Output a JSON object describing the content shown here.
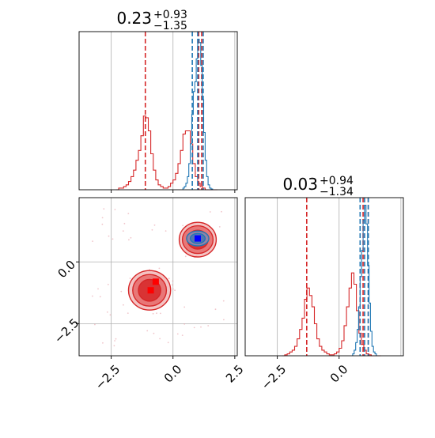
{
  "chart_data": [
    {
      "panel": "top-left",
      "type": "histogram",
      "title": {
        "base": "0.23",
        "sup": "+0.93",
        "sub": "−1.35"
      },
      "xlim": [
        -3.8,
        2.6
      ],
      "series": [
        {
          "name": "",
          "color": "#d62728",
          "bin_edges": [
            -2.3,
            -2.2,
            -2.1,
            -2.0,
            -1.9,
            -1.8,
            -1.7,
            -1.6,
            -1.5,
            -1.4,
            -1.3,
            -1.2,
            -1.1,
            -1.0,
            -0.9,
            -0.8,
            -0.7,
            -0.6,
            -0.5,
            -0.4,
            -0.3,
            -0.2,
            -0.1,
            0.0,
            0.1,
            0.2,
            0.3,
            0.4,
            0.5,
            0.6,
            0.7,
            0.8,
            0.9,
            1.0,
            1.1,
            1.2,
            1.3,
            1.4,
            1.5,
            1.6,
            1.7,
            1.8
          ],
          "heights": [
            0,
            0.01,
            0.01,
            0.02,
            0.03,
            0.05,
            0.08,
            0.12,
            0.18,
            0.24,
            0.33,
            0.45,
            0.44,
            0.36,
            0.22,
            0.12,
            0.06,
            0.03,
            0.02,
            0.01,
            0.01,
            0.02,
            0.04,
            0.06,
            0.1,
            0.16,
            0.24,
            0.34,
            0.36,
            0.36,
            0.28,
            0.16,
            0.08,
            0.04,
            0.02,
            0.01,
            0,
            0,
            0,
            0,
            0
          ],
          "quantiles": [
            -1.12,
            1.04,
            1.16
          ]
        },
        {
          "name": "",
          "color": "#1f77b4",
          "bin_edges": [
            0.4,
            0.46,
            0.52,
            0.58,
            0.64,
            0.7,
            0.76,
            0.82,
            0.88,
            0.94,
            1.0,
            1.06,
            1.12,
            1.18,
            1.24,
            1.3,
            1.36,
            1.42,
            1.48,
            1.54,
            1.6
          ],
          "heights": [
            0.01,
            0.02,
            0.04,
            0.08,
            0.16,
            0.28,
            0.46,
            0.6,
            0.66,
            0.8,
            0.92,
            0.9,
            0.76,
            0.55,
            0.35,
            0.18,
            0.08,
            0.03,
            0.01,
            0.005
          ],
          "quantiles": [
            0.78,
            1.0,
            1.22
          ]
        }
      ],
      "grid": true
    },
    {
      "panel": "bottom-left",
      "type": "scatter",
      "xlim": [
        -3.8,
        2.6
      ],
      "ylim": [
        -3.8,
        2.6
      ],
      "xticks": [
        "−2.5",
        "0.0",
        "2.5"
      ],
      "yticks": [
        "0.0",
        "−2.5"
      ],
      "contours": [
        {
          "color": "#d62728",
          "center": [
            1.0,
            0.9
          ],
          "levels": [
            [
              0.75,
              0.7
            ],
            [
              0.62,
              0.56
            ],
            [
              0.42,
              0.38
            ]
          ]
        },
        {
          "color": "#d62728",
          "center": [
            -0.95,
            -1.15
          ],
          "levels": [
            [
              0.85,
              0.8
            ],
            [
              0.68,
              0.64
            ],
            [
              0.45,
              0.44
            ]
          ]
        },
        {
          "color": "#1f77b4",
          "center": [
            1.0,
            0.95
          ],
          "levels": [
            [
              0.45,
              0.3
            ],
            [
              0.3,
              0.2
            ]
          ]
        }
      ],
      "markers": [
        {
          "color": "#ff0000",
          "x": -0.9,
          "y": -1.15
        },
        {
          "color": "#ff0000",
          "x": -0.7,
          "y": -0.8
        },
        {
          "color": "#0000ff",
          "x": 1.0,
          "y": 0.95
        }
      ],
      "grid": true
    },
    {
      "panel": "bottom-right",
      "type": "histogram",
      "title": {
        "base": "0.03",
        "sup": "+0.94",
        "sub": "−1.34"
      },
      "xlim": [
        -3.8,
        2.6
      ],
      "xticks": [
        "−2.5",
        "0.0"
      ],
      "series": [
        {
          "name": "",
          "color": "#d62728",
          "bin_edges": [
            -2.3,
            -2.2,
            -2.1,
            -2.0,
            -1.9,
            -1.8,
            -1.7,
            -1.6,
            -1.5,
            -1.4,
            -1.3,
            -1.2,
            -1.1,
            -1.0,
            -0.9,
            -0.8,
            -0.7,
            -0.6,
            -0.5,
            -0.4,
            -0.3,
            -0.2,
            -0.1,
            0.0,
            0.1,
            0.2,
            0.3,
            0.4,
            0.5,
            0.6,
            0.7,
            0.8,
            0.9,
            1.0,
            1.1,
            1.2,
            1.3,
            1.4,
            1.5,
            1.6,
            1.7
          ],
          "heights": [
            0,
            0.005,
            0.01,
            0.02,
            0.03,
            0.05,
            0.09,
            0.14,
            0.2,
            0.3,
            0.36,
            0.32,
            0.26,
            0.17,
            0.09,
            0.05,
            0.03,
            0.02,
            0.01,
            0.005,
            0.005,
            0.01,
            0.02,
            0.04,
            0.08,
            0.16,
            0.26,
            0.36,
            0.44,
            0.38,
            0.24,
            0.12,
            0.06,
            0.03,
            0.01,
            0.005,
            0,
            0,
            0,
            0
          ],
          "quantiles": [
            -1.31,
            0.97,
            1.18
          ]
        },
        {
          "name": "",
          "color": "#1f77b4",
          "bin_edges": [
            0.55,
            0.61,
            0.67,
            0.73,
            0.79,
            0.85,
            0.91,
            0.97,
            1.03,
            1.09,
            1.15,
            1.21,
            1.27,
            1.33,
            1.39,
            1.45,
            1.51
          ],
          "heights": [
            0.01,
            0.03,
            0.07,
            0.14,
            0.26,
            0.42,
            0.56,
            0.72,
            0.8,
            0.7,
            0.48,
            0.28,
            0.13,
            0.05,
            0.02,
            0.01
          ],
          "quantiles": [
            0.85,
            1.03,
            1.18
          ]
        }
      ],
      "grid": true
    }
  ]
}
